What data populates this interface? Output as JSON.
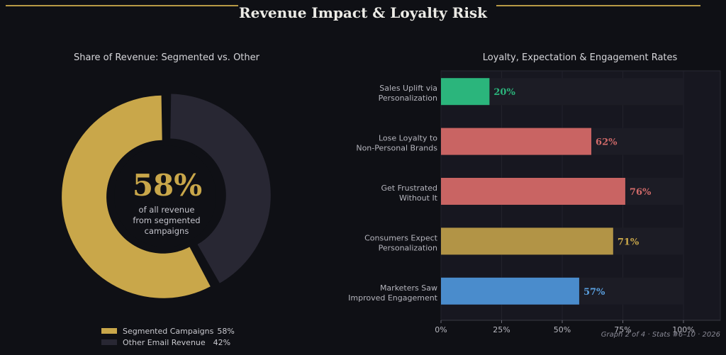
{
  "title": "Revenue Impact & Loyalty Risk",
  "footer": "Graph 2 of 4  ·  Stats #6–10  ·  2026",
  "chart_data": [
    {
      "type": "pie",
      "title": "Share of Revenue: Segmented vs. Other",
      "center_value": "58%",
      "center_caption": [
        "of all revenue",
        "from segmented",
        "campaigns"
      ],
      "slices": [
        {
          "label": "Segmented Campaigns",
          "value": 58,
          "value_label": "58%",
          "color": "#c9a74a"
        },
        {
          "label": "Other Email Revenue",
          "value": 42,
          "value_label": "42%",
          "color": "#282733"
        }
      ],
      "legend": "bottom"
    },
    {
      "type": "bar",
      "orientation": "horizontal",
      "title": "Loyalty, Expectation & Engagement Rates",
      "categories": [
        [
          "Sales Uplift via",
          "Personalization"
        ],
        [
          "Lose Loyalty to",
          "Non-Personal Brands"
        ],
        [
          "Get Frustrated",
          "Without It"
        ],
        [
          "Consumers Expect",
          "Personalization"
        ],
        [
          "Marketers Saw",
          "Improved Engagement"
        ]
      ],
      "values": [
        20,
        62,
        76,
        71,
        57
      ],
      "value_labels": [
        "20%",
        "62%",
        "76%",
        "71%",
        "57%"
      ],
      "colors": [
        "#2bb57c",
        "#c96463",
        "#c96463",
        "#b29446",
        "#4a8ccc"
      ],
      "label_colors": [
        "#2bb57c",
        "#d06a69",
        "#d06a69",
        "#c9a74a",
        "#5aa0e0"
      ],
      "xlim": [
        0,
        100
      ],
      "xticks": [
        0,
        25,
        50,
        75,
        100
      ],
      "xtick_labels": [
        "0%",
        "25%",
        "50%",
        "75%",
        "100%"
      ],
      "grid": true
    }
  ]
}
